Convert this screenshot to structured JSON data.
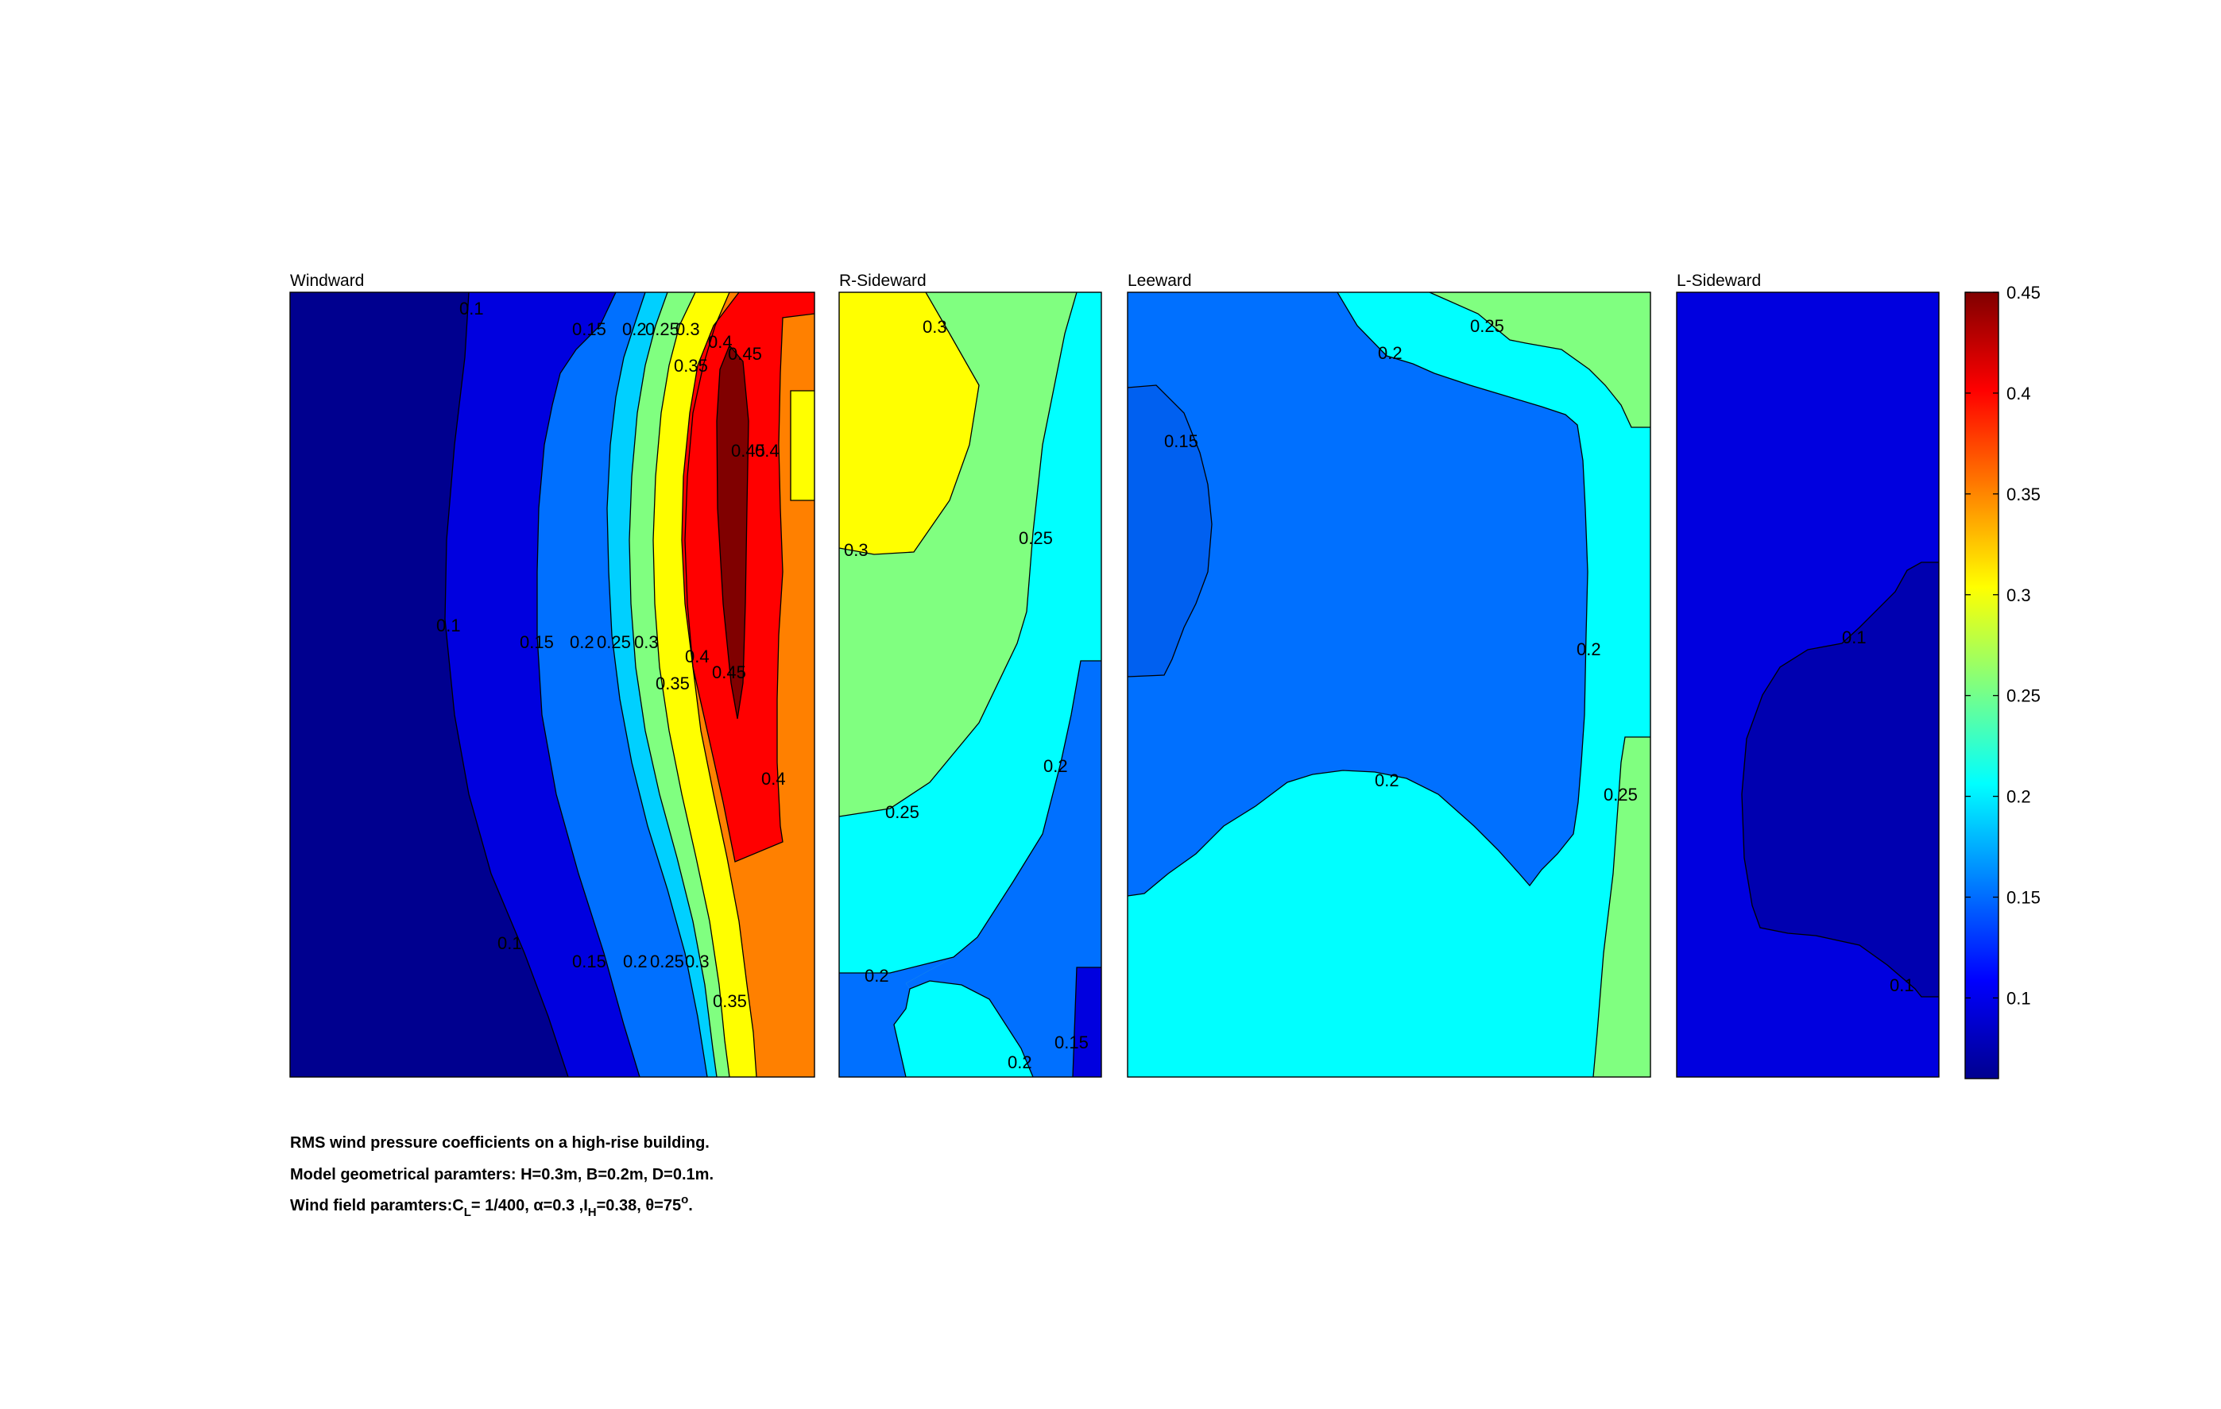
{
  "chart_data": {
    "type": "contour",
    "colormap": "jet",
    "colorbar": {
      "range": [
        0.06,
        0.45
      ],
      "ticks": [
        "0.1",
        "0.15",
        "0.2",
        "0.25",
        "0.3",
        "0.35",
        "0.4",
        "0.45"
      ],
      "tick_values": [
        0.1,
        0.15,
        0.2,
        0.25,
        0.3,
        0.35,
        0.4,
        0.45
      ]
    },
    "panels": [
      {
        "title": "Windward",
        "level_colors": [
          "#00008f",
          "#0000df",
          "#0070ff",
          "#00d0ff",
          "#80ff80",
          "#ffff00",
          "#ff8000",
          "#ff0000",
          "#800000"
        ],
        "band_levels": [
          0.1,
          0.15,
          0.2,
          0.25,
          0.3,
          0.35,
          0.4,
          0.45
        ],
        "contour_labels": [
          "0.1",
          "0.15",
          "0.2",
          "0.25",
          "0.3",
          "0.35",
          "0.4",
          "0.45",
          "0.1",
          "0.15",
          "0.2",
          "0.25",
          "0.3",
          "0.35",
          "0.4",
          "0.45",
          "0.4",
          "0.45",
          "0.4",
          "0.1",
          "0.15",
          "0.2",
          "0.25",
          "0.3",
          "0.35"
        ]
      },
      {
        "title": "R-Sideward",
        "contour_labels": [
          "0.3",
          "0.3",
          "0.25",
          "0.25",
          "0.2",
          "0.2",
          "0.2",
          "0.15"
        ]
      },
      {
        "title": "Leeward",
        "contour_labels": [
          "0.2",
          "0.25",
          "0.15",
          "0.2",
          "0.2",
          "0.25"
        ]
      },
      {
        "title": "L-Sideward",
        "contour_labels": [
          "0.1",
          "0.1"
        ]
      }
    ]
  },
  "caption": {
    "line1": "RMS wind pressure coefficients on a high-rise building.",
    "line2": "Model geometrical paramters: H=0.3m, B=0.2m, D=0.1m.",
    "line3_prefix": "Wind field paramters:C",
    "line3_sub1": "L",
    "line3_mid1": "= 1/400, α=0.3 ,I",
    "line3_sub2": "H",
    "line3_mid2": "=0.38, θ=75",
    "line3_sup": "o",
    "line3_suffix": "."
  }
}
